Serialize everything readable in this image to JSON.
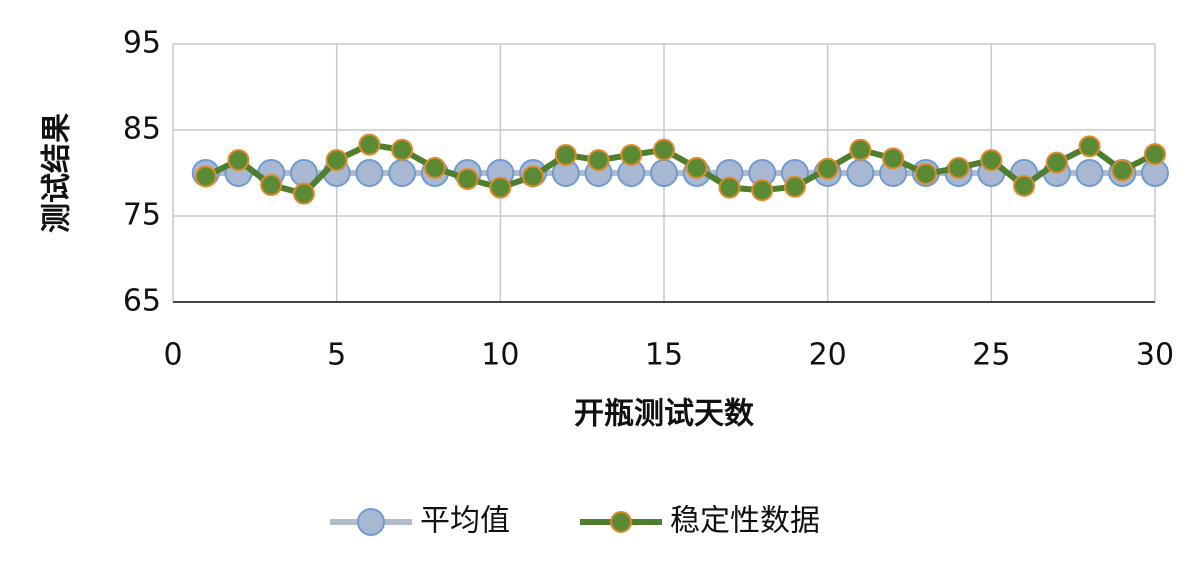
{
  "chart_data": {
    "type": "line",
    "xlabel": "开瓶测试天数",
    "ylabel": "测试结果",
    "x": [
      1,
      2,
      3,
      4,
      5,
      6,
      7,
      8,
      9,
      10,
      11,
      12,
      13,
      14,
      15,
      16,
      17,
      18,
      19,
      20,
      21,
      22,
      23,
      24,
      25,
      26,
      27,
      28,
      29,
      30
    ],
    "series": [
      {
        "name": "平均值",
        "color": "#b3bccb",
        "marker_color": "#a9b8d2",
        "marker_edge": "#6f9bd1",
        "marker_size": 13,
        "values": [
          80,
          80,
          80,
          80,
          80,
          80,
          80,
          80,
          80,
          80,
          80,
          80,
          80,
          80,
          80,
          80,
          80,
          80,
          80,
          80,
          80,
          80,
          80,
          80,
          80,
          80,
          80,
          80,
          80,
          80
        ]
      },
      {
        "name": "稳定性数据",
        "color": "#4e7f2e",
        "marker_color": "#5b8a34",
        "marker_edge": "#e08a2c",
        "marker_size": 10,
        "values": [
          79.6,
          81.5,
          78.6,
          77.6,
          81.5,
          83.3,
          82.7,
          80.6,
          79.3,
          78.3,
          79.6,
          82.1,
          81.5,
          82.1,
          82.7,
          80.6,
          78.3,
          78.0,
          78.4,
          80.5,
          82.7,
          81.7,
          79.9,
          80.6,
          81.5,
          78.5,
          81.2,
          83.1,
          80.3,
          82.2
        ]
      }
    ],
    "xlim": [
      0,
      30
    ],
    "xticks": [
      0,
      5,
      10,
      15,
      20,
      25,
      30
    ],
    "ylim": [
      65,
      95
    ],
    "yticks": [
      65,
      75,
      85,
      95
    ],
    "grid": true,
    "legend": "bottom"
  }
}
